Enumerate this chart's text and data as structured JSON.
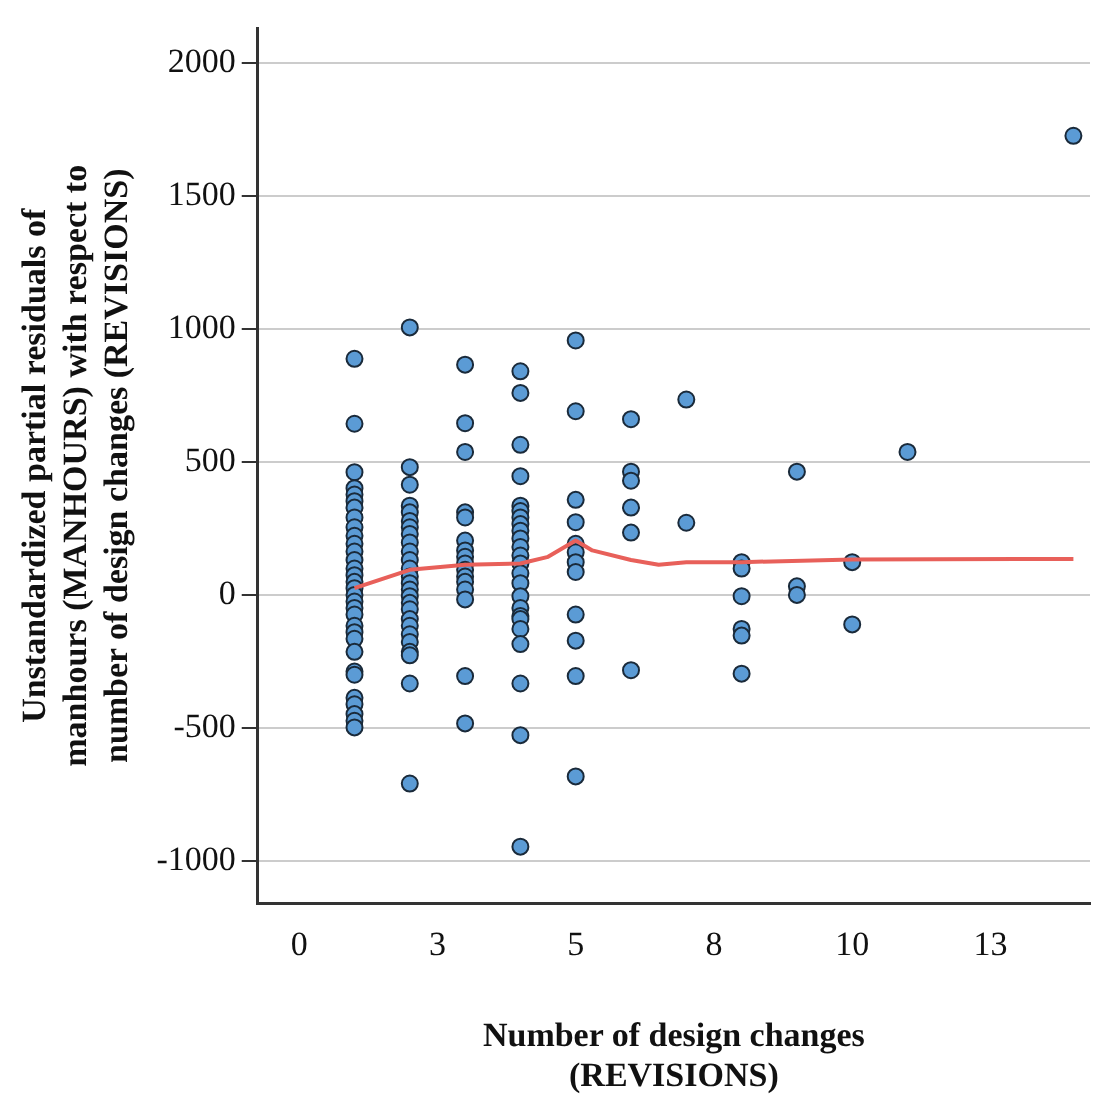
{
  "chart_data": {
    "type": "scatter",
    "xlabel": "Number of design changes\n(REVISIONS)",
    "ylabel": "Unstandardized partial residuals of\nmanhours (MANHOURS) with respect to\nnumber of design changes (REVISIONS)",
    "xlim": [
      -0.75,
      14.3
    ],
    "ylim": [
      -1160,
      2130
    ],
    "xticks": [
      {
        "value": 0,
        "label": "0"
      },
      {
        "value": 2.5,
        "label": "3"
      },
      {
        "value": 5,
        "label": "5"
      },
      {
        "value": 7.5,
        "label": "8"
      },
      {
        "value": 10,
        "label": "10"
      },
      {
        "value": 12.5,
        "label": "13"
      }
    ],
    "yticks": [
      -1000,
      -500,
      0,
      500,
      1000,
      1500,
      2000
    ],
    "grid": "y",
    "marker": "circle",
    "series": [
      {
        "color": "#5b9bd5",
        "x": [
          1,
          1,
          1,
          1,
          1,
          1,
          1,
          1,
          1,
          1,
          1,
          1,
          1,
          1,
          1,
          1,
          1,
          1,
          1,
          1,
          1,
          1,
          1,
          1,
          1,
          1,
          1,
          1,
          1,
          1,
          1,
          1,
          2,
          2,
          2,
          2,
          2,
          2,
          2,
          2,
          2,
          2,
          2,
          2,
          2,
          2,
          2,
          2,
          2,
          2,
          2,
          2,
          2,
          2,
          2,
          2,
          2,
          2,
          3,
          3,
          3,
          3,
          3,
          3,
          3,
          3,
          3,
          3,
          3,
          3,
          3,
          3,
          3,
          3,
          4,
          4,
          4,
          4,
          4,
          4,
          4,
          4,
          4,
          4,
          4,
          4,
          4,
          4,
          4,
          4,
          4,
          4,
          4,
          4,
          4,
          4,
          4,
          4,
          5,
          5,
          5,
          5,
          5,
          5,
          5,
          5,
          5,
          5,
          5,
          5,
          6,
          6,
          6,
          6,
          6,
          6,
          7,
          7,
          8,
          8,
          8,
          8,
          8,
          8,
          9,
          9,
          9,
          10,
          10,
          11,
          14
        ],
        "values": [
          887,
          643,
          461,
          401,
          377,
          352,
          328,
          291,
          254,
          222,
          192,
          163,
          131,
          99,
          74,
          49,
          25,
          0,
          -25,
          -49,
          -74,
          -116,
          -140,
          -165,
          -214,
          -288,
          -300,
          -387,
          -411,
          -448,
          -473,
          -498,
          1005,
          480,
          414,
          335,
          310,
          278,
          254,
          229,
          197,
          163,
          131,
          99,
          69,
          44,
          20,
          -5,
          -30,
          -54,
          -91,
          -116,
          -148,
          -177,
          -214,
          -227,
          -333,
          -709,
          865,
          645,
          537,
          310,
          291,
          204,
          167,
          143,
          118,
          94,
          69,
          49,
          20,
          -17,
          -305,
          -483,
          840,
          759,
          564,
          446,
          335,
          315,
          291,
          266,
          241,
          212,
          180,
          148,
          118,
          81,
          44,
          -5,
          -49,
          -79,
          -91,
          -128,
          -185,
          -333,
          -527,
          -946,
          956,
          690,
          357,
          273,
          192,
          160,
          123,
          86,
          -74,
          -172,
          -305,
          -682,
          660,
          463,
          429,
          328,
          234,
          -283,
          734,
          271,
          123,
          99,
          -5,
          -128,
          -153,
          -296,
          463,
          32,
          0,
          123,
          -111,
          537,
          1725
        ]
      },
      {
        "type": "line",
        "color": "#e8605a",
        "marker": "none",
        "x": [
          1,
          2,
          3,
          4,
          4.5,
          5,
          5.3,
          6,
          6.5,
          7,
          8,
          10,
          14
        ],
        "values": [
          25,
          94,
          113,
          118,
          143,
          204,
          167,
          131,
          113,
          123,
          123,
          133,
          135
        ]
      }
    ]
  }
}
